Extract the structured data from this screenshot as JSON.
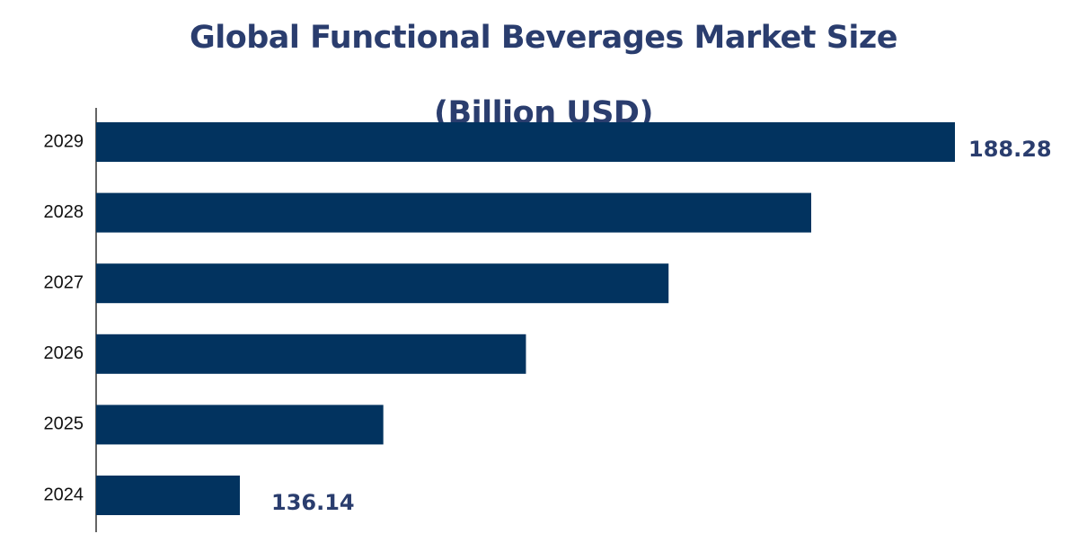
{
  "chart_data": {
    "type": "bar",
    "orientation": "horizontal",
    "title": "Global Functional Beverages Market Size (Billion USD)",
    "categories": [
      "2024",
      "2025",
      "2026",
      "2027",
      "2028",
      "2029"
    ],
    "values": [
      136.14,
      146.6,
      157.0,
      167.4,
      177.8,
      188.28
    ],
    "color": "#02335f"
  }
}
